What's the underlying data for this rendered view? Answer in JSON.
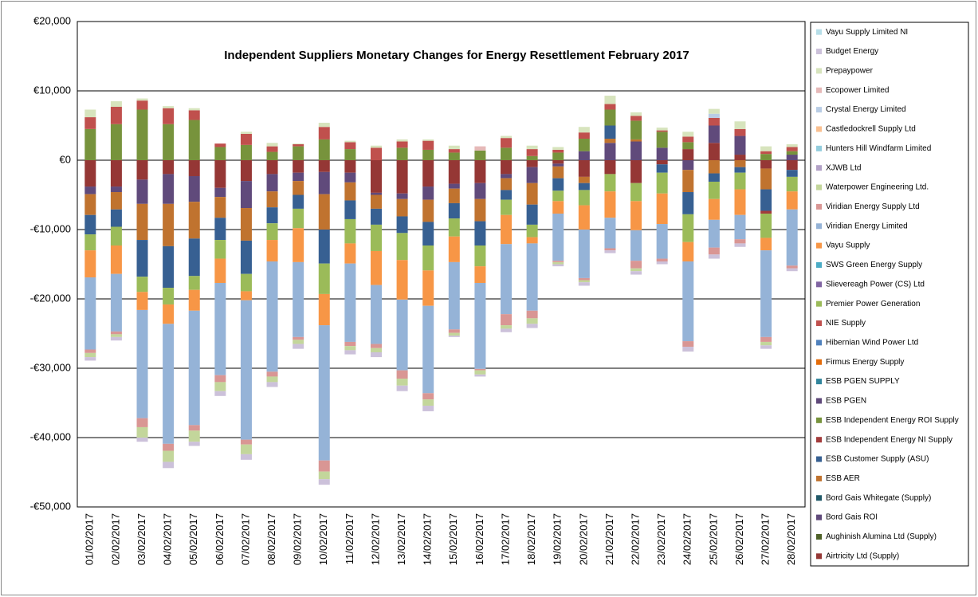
{
  "chart_data": {
    "type": "stacked_bar",
    "title": "Independent Suppliers Monetary Changes  for Energy Resettlement  February 2017",
    "categories": [
      "01/02/2017",
      "02/02/2017",
      "03/02/2017",
      "04/02/2017",
      "05/02/2017",
      "06/02/2017",
      "07/02/2017",
      "08/02/2017",
      "09/02/2017",
      "10/02/2017",
      "11/02/2017",
      "12/02/2017",
      "13/02/2017",
      "14/02/2017",
      "15/02/2017",
      "16/02/2017",
      "17/02/2017",
      "18/02/2017",
      "19/02/2017",
      "20/02/2017",
      "21/02/2017",
      "22/02/2017",
      "23/02/2017",
      "24/02/2017",
      "25/02/2017",
      "26/02/2017",
      "27/02/2017",
      "28/02/2017"
    ],
    "ylim": [
      -50000,
      20000
    ],
    "yticks": [
      {
        "value": -50000,
        "label": "-€50,000"
      },
      {
        "value": -40000,
        "label": "-€40,000"
      },
      {
        "value": -30000,
        "label": "-€30,000"
      },
      {
        "value": -20000,
        "label": "-€20,000"
      },
      {
        "value": -10000,
        "label": "-€10,000"
      },
      {
        "value": 0,
        "label": "€0"
      },
      {
        "value": 10000,
        "label": "€10,000"
      },
      {
        "value": 20000,
        "label": "€20,000"
      }
    ],
    "grid": true,
    "legend": "right",
    "series": [
      {
        "name": "Airtricity Ltd (Supply)",
        "color": "#953735",
        "values": [
          -3800,
          -3800,
          -2800,
          -2000,
          -2300,
          -4000,
          -3000,
          -2000,
          -1800,
          -1700,
          -1800,
          -4700,
          -4800,
          -3800,
          -3400,
          -3300,
          -2000,
          -1000,
          -500,
          -2400,
          -2000,
          -3300,
          -600,
          1600,
          2500,
          800,
          -1200,
          -1400
        ]
      },
      {
        "name": "Aughinish Alumina Ltd (Supply)",
        "color": "#4f6228",
        "values": [
          0,
          0,
          0,
          0,
          0,
          0,
          0,
          0,
          0,
          0,
          0,
          0,
          0,
          0,
          0,
          0,
          0,
          0,
          0,
          0,
          0,
          0,
          0,
          0,
          0,
          0,
          0,
          0
        ]
      },
      {
        "name": "Bord Gais ROI",
        "color": "#604a7b",
        "values": [
          -1100,
          -800,
          -3500,
          -4300,
          -3700,
          -1300,
          -3900,
          -2500,
          -1200,
          -3200,
          -1400,
          -300,
          -800,
          -1900,
          -700,
          -2300,
          -600,
          -2300,
          -400,
          1300,
          2500,
          2700,
          1800,
          -1400,
          2500,
          2700,
          0,
          800
        ]
      },
      {
        "name": "Bord Gais Whitegate (Supply)",
        "color": "#215968",
        "values": [
          0,
          0,
          0,
          0,
          0,
          0,
          0,
          0,
          0,
          0,
          0,
          0,
          0,
          0,
          0,
          0,
          0,
          0,
          0,
          0,
          0,
          0,
          0,
          0,
          0,
          0,
          0,
          0
        ]
      },
      {
        "name": "ESB AER",
        "color": "#c0732f",
        "values": [
          -3000,
          -2500,
          -5200,
          -6100,
          -5300,
          -3000,
          -4700,
          -2300,
          -2000,
          -5100,
          -2600,
          -2000,
          -2500,
          -3200,
          -2100,
          -3200,
          -1700,
          -3100,
          -1700,
          -900,
          600,
          300,
          0,
          -3200,
          -1900,
          -1000,
          -3000,
          0
        ]
      },
      {
        "name": "ESB Customer Supply (ASU)",
        "color": "#376092",
        "values": [
          -2800,
          -2500,
          -5300,
          -6000,
          -5400,
          -3200,
          -4800,
          -2300,
          -2000,
          -4900,
          -2700,
          -2300,
          -2400,
          -3400,
          -2200,
          -3500,
          -1400,
          -2900,
          -1800,
          -1000,
          1900,
          0,
          -1200,
          -3200,
          -1200,
          -800,
          -3100,
          -1000
        ]
      },
      {
        "name": "ESB Independent Energy NI Supply",
        "color": "#a33b3b",
        "values": [
          0,
          0,
          0,
          0,
          0,
          0,
          0,
          0,
          0,
          0,
          0,
          0,
          0,
          0,
          0,
          0,
          0,
          0,
          0,
          0,
          0,
          0,
          0,
          0,
          0,
          0,
          -400,
          0
        ]
      },
      {
        "name": "ESB Independent Energy ROI Supply",
        "color": "#77933c",
        "values": [
          4500,
          5200,
          7300,
          5200,
          5800,
          1900,
          2200,
          1200,
          2000,
          3000,
          1600,
          0,
          1800,
          1500,
          1100,
          1400,
          1800,
          600,
          1100,
          1800,
          2300,
          2700,
          2300,
          1000,
          0,
          0,
          900,
          500
        ]
      },
      {
        "name": "ESB PGEN",
        "color": "#5f497a",
        "values": [
          0,
          0,
          0,
          0,
          0,
          0,
          0,
          0,
          0,
          0,
          0,
          0,
          0,
          0,
          0,
          0,
          0,
          0,
          0,
          0,
          0,
          0,
          0,
          0,
          0,
          0,
          0,
          0
        ]
      },
      {
        "name": "ESB PGEN SUPPLY",
        "color": "#31859c",
        "values": [
          0,
          0,
          0,
          0,
          0,
          0,
          0,
          0,
          0,
          0,
          0,
          0,
          0,
          0,
          0,
          0,
          0,
          0,
          0,
          0,
          0,
          0,
          0,
          0,
          0,
          0,
          0,
          0
        ]
      },
      {
        "name": "Firmus Energy Supply",
        "color": "#e46c0a",
        "values": [
          0,
          0,
          0,
          0,
          0,
          0,
          0,
          0,
          0,
          0,
          0,
          0,
          0,
          0,
          0,
          0,
          0,
          0,
          0,
          0,
          0,
          0,
          0,
          0,
          0,
          0,
          0,
          0
        ]
      },
      {
        "name": "Hibernian Wind Power Ltd",
        "color": "#4f81bd",
        "values": [
          0,
          0,
          0,
          0,
          0,
          0,
          0,
          0,
          0,
          0,
          0,
          0,
          0,
          0,
          0,
          0,
          0,
          0,
          0,
          0,
          0,
          0,
          0,
          0,
          0,
          0,
          0,
          0
        ]
      },
      {
        "name": "NIE Supply",
        "color": "#c0504d",
        "values": [
          1700,
          2500,
          1300,
          2300,
          1400,
          500,
          1600,
          800,
          300,
          1800,
          1000,
          1800,
          900,
          1300,
          500,
          0,
          1400,
          1000,
          400,
          900,
          800,
          700,
          200,
          800,
          1100,
          1000,
          400,
          600
        ]
      },
      {
        "name": "Premier Power Generation",
        "color": "#9bbb59",
        "values": [
          -2300,
          -2700,
          -2200,
          -2400,
          -2000,
          -2700,
          -2500,
          -2400,
          -2800,
          -4400,
          -3500,
          -3800,
          -3900,
          -3600,
          -2600,
          -3000,
          -2200,
          -1800,
          -1500,
          -2200,
          -2500,
          -2600,
          -3000,
          -4000,
          -2500,
          -2400,
          -3500,
          -2100
        ]
      },
      {
        "name": "Slievereagh Power (CS) Ltd",
        "color": "#8064a2",
        "values": [
          0,
          0,
          0,
          0,
          0,
          0,
          0,
          0,
          0,
          0,
          0,
          0,
          0,
          0,
          0,
          0,
          0,
          0,
          0,
          0,
          0,
          0,
          0,
          0,
          0,
          0,
          0,
          0
        ]
      },
      {
        "name": "SWS Green Energy Supply",
        "color": "#4bacc6",
        "values": [
          0,
          0,
          0,
          0,
          0,
          0,
          0,
          0,
          0,
          0,
          0,
          0,
          0,
          0,
          0,
          0,
          0,
          0,
          0,
          0,
          0,
          0,
          0,
          0,
          0,
          0,
          0,
          0
        ]
      },
      {
        "name": "Vayu Supply",
        "color": "#f79646",
        "values": [
          -3900,
          -4100,
          -2600,
          -2800,
          -3000,
          -3500,
          -1300,
          -3100,
          -4900,
          -4500,
          -2900,
          -4900,
          -5700,
          -5100,
          -3700,
          -2400,
          -4200,
          -900,
          -1800,
          -3500,
          -3800,
          -4200,
          -4400,
          -2800,
          -3000,
          -3700,
          -1800,
          -2600
        ]
      },
      {
        "name": "Viridian Energy Limited",
        "color": "#95b3d7",
        "values": [
          -10400,
          -8300,
          -15600,
          -17300,
          -16500,
          -13300,
          -20100,
          -15900,
          -10800,
          -19500,
          -11300,
          -8500,
          -10200,
          -12600,
          -9700,
          -12400,
          -10100,
          -9700,
          -6800,
          -7000,
          -4400,
          -4400,
          -5000,
          -11500,
          -4000,
          -3500,
          -12500,
          -8100
        ]
      },
      {
        "name": "Viridian Energy Supply Ltd",
        "color": "#d99694",
        "values": [
          -500,
          -400,
          -1300,
          -1000,
          -800,
          -1000,
          -700,
          -700,
          -400,
          -1600,
          -600,
          -600,
          -1200,
          -900,
          -500,
          -200,
          -1600,
          -1100,
          -200,
          -300,
          -300,
          -1100,
          -400,
          -800,
          -1000,
          -600,
          -700,
          -400
        ]
      },
      {
        "name": "Waterpower Engineering Ltd.",
        "color": "#c3d69b",
        "values": [
          -600,
          -400,
          -1500,
          -1600,
          -1600,
          -1300,
          -1400,
          -800,
          -600,
          -1100,
          -600,
          -600,
          -1000,
          -900,
          -400,
          -600,
          -500,
          -800,
          -300,
          -300,
          0,
          -400,
          0,
          0,
          0,
          0,
          -500,
          0
        ]
      },
      {
        "name": "XJWB Ltd",
        "color": "#b3a2c7",
        "values": [
          0,
          0,
          0,
          0,
          0,
          0,
          0,
          0,
          0,
          0,
          0,
          0,
          0,
          0,
          0,
          0,
          0,
          0,
          0,
          0,
          0,
          0,
          0,
          0,
          0,
          0,
          0,
          0
        ]
      },
      {
        "name": "Hunters Hill Windfarm Limited",
        "color": "#93cddd",
        "values": [
          0,
          0,
          0,
          0,
          0,
          0,
          0,
          0,
          0,
          0,
          0,
          0,
          0,
          0,
          0,
          0,
          0,
          0,
          0,
          0,
          0,
          0,
          0,
          0,
          0,
          0,
          0,
          0
        ]
      },
      {
        "name": "Castledockrell Supply Ltd",
        "color": "#fac090",
        "values": [
          0,
          0,
          0,
          0,
          0,
          0,
          0,
          0,
          0,
          0,
          0,
          0,
          0,
          0,
          0,
          0,
          0,
          0,
          0,
          0,
          0,
          0,
          0,
          0,
          0,
          0,
          0,
          0
        ]
      },
      {
        "name": "Crystal Energy Limited",
        "color": "#b9cde5",
        "values": [
          0,
          0,
          0,
          0,
          0,
          0,
          0,
          0,
          0,
          0,
          0,
          0,
          0,
          0,
          0,
          0,
          0,
          0,
          0,
          0,
          0,
          0,
          0,
          0,
          600,
          0,
          0,
          0
        ]
      },
      {
        "name": "Ecopower Limited",
        "color": "#e6b9b8",
        "values": [
          0,
          0,
          0,
          0,
          0,
          0,
          0,
          0,
          0,
          0,
          0,
          0,
          0,
          0,
          0,
          600,
          0,
          0,
          0,
          0,
          0,
          0,
          0,
          0,
          0,
          0,
          0,
          0
        ]
      },
      {
        "name": "Prepaypower",
        "color": "#d7e4bd",
        "values": [
          1100,
          800,
          300,
          300,
          300,
          0,
          300,
          500,
          100,
          600,
          200,
          300,
          300,
          200,
          500,
          0,
          300,
          500,
          400,
          800,
          1200,
          500,
          400,
          700,
          700,
          1100,
          700,
          400
        ]
      },
      {
        "name": "Budget Energy",
        "color": "#ccc1da",
        "values": [
          -500,
          -500,
          -600,
          -900,
          -600,
          -700,
          -800,
          -700,
          -700,
          -800,
          -600,
          -700,
          -800,
          -800,
          -200,
          -300,
          -500,
          -600,
          -300,
          -500,
          -400,
          -500,
          -400,
          -700,
          -600,
          -500,
          -500,
          -400
        ]
      },
      {
        "name": "Vayu Supply Limited NI",
        "color": "#b7dee8",
        "values": [
          0,
          0,
          0,
          0,
          0,
          0,
          0,
          0,
          0,
          0,
          0,
          0,
          0,
          0,
          0,
          0,
          0,
          0,
          0,
          0,
          0,
          0,
          0,
          0,
          0,
          0,
          0,
          0
        ]
      }
    ]
  }
}
